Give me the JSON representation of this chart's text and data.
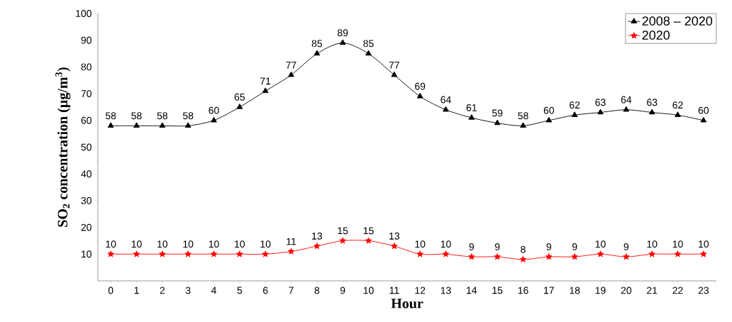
{
  "chart_data": {
    "type": "line",
    "xlabel": "Hour",
    "ylabel": "SO$_{2}$ concentration (µg/m$^{3}$)",
    "x": [
      0,
      1,
      2,
      3,
      4,
      5,
      6,
      7,
      8,
      9,
      10,
      11,
      12,
      13,
      14,
      15,
      16,
      17,
      18,
      19,
      20,
      21,
      22,
      23
    ],
    "xlim": [
      -0.5,
      23.5
    ],
    "ylim": [
      0,
      100
    ],
    "xticks": [
      0,
      1,
      2,
      3,
      4,
      5,
      6,
      7,
      8,
      9,
      10,
      11,
      12,
      13,
      14,
      15,
      16,
      17,
      18,
      19,
      20,
      21,
      22,
      23
    ],
    "yticks": [
      10,
      20,
      30,
      40,
      50,
      60,
      70,
      80,
      90,
      100
    ],
    "series": [
      {
        "name": "2008 – 2020",
        "color": "#000000",
        "marker": "triangle",
        "values": [
          58,
          58,
          58,
          58,
          60,
          65,
          71,
          77,
          85,
          89,
          85,
          77,
          69,
          64,
          61,
          59,
          58,
          60,
          62,
          63,
          64,
          63,
          62,
          60
        ]
      },
      {
        "name": "2020",
        "color": "#ff0000",
        "marker": "star",
        "values": [
          10,
          10,
          10,
          10,
          10,
          10,
          10,
          11,
          13,
          15,
          15,
          13,
          10,
          10,
          9,
          9,
          8,
          9,
          9,
          10,
          9,
          10,
          10,
          10
        ]
      }
    ],
    "data_labels": true,
    "legend": "top right",
    "grid": false
  }
}
